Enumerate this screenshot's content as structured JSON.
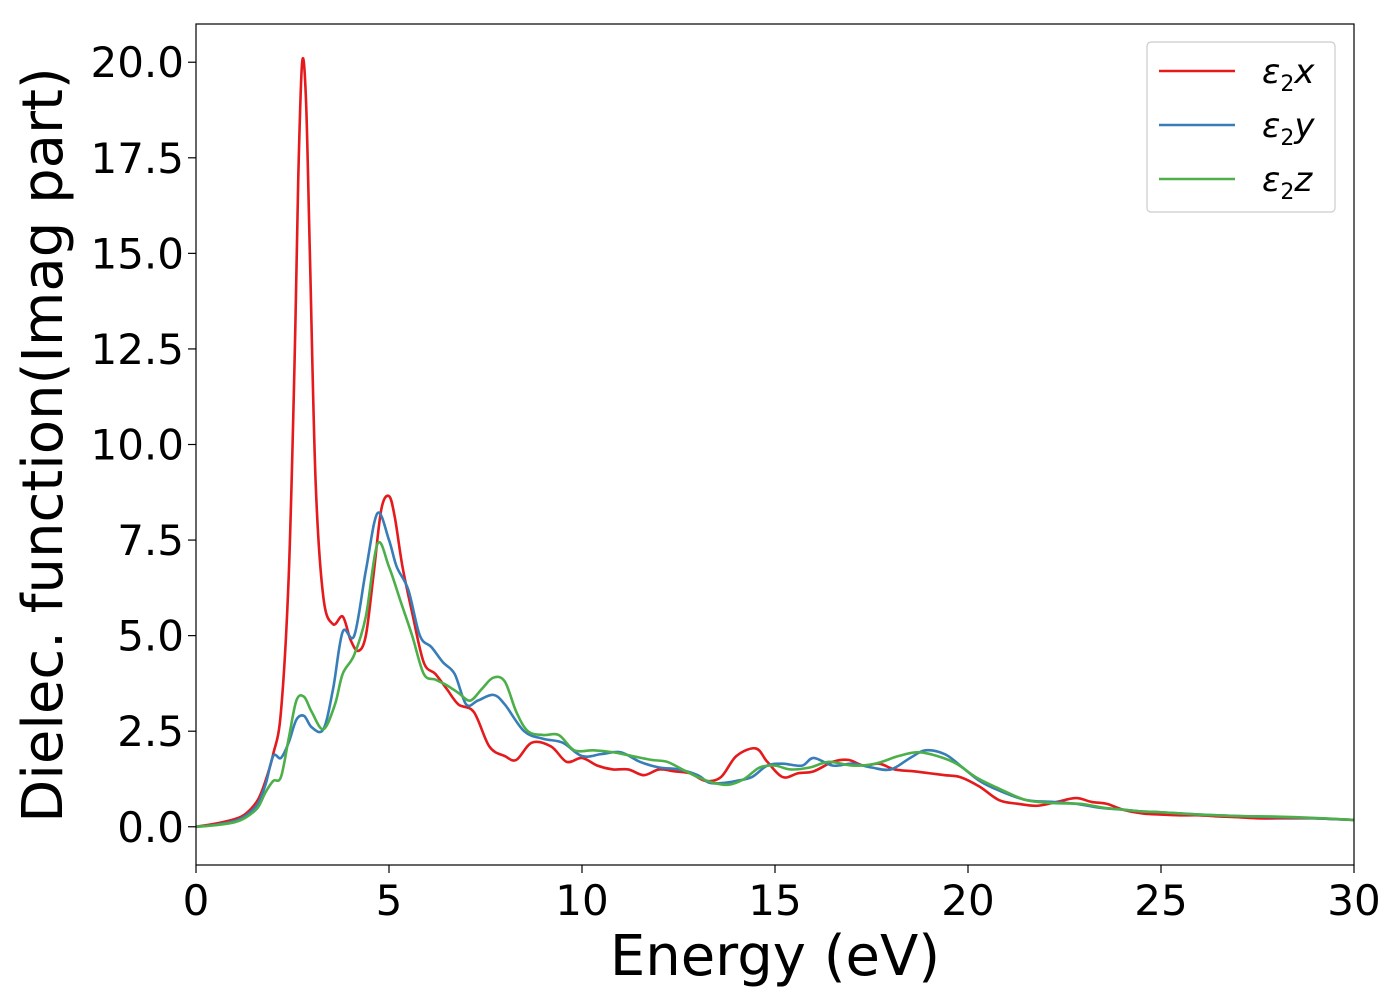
{
  "chart_data": {
    "type": "line",
    "xlabel": "Energy (eV)",
    "ylabel": "Dielec. function(Imag part)",
    "xlim": [
      0,
      30
    ],
    "ylim": [
      -1.0,
      21.0
    ],
    "xticks": [
      0,
      5,
      10,
      15,
      20,
      25,
      30
    ],
    "xtick_labels": [
      "0",
      "5",
      "10",
      "15",
      "20",
      "25",
      "30"
    ],
    "yticks": [
      0,
      2.5,
      5,
      7.5,
      10,
      12.5,
      15,
      17.5,
      20
    ],
    "ytick_labels": [
      "0.0",
      "2.5",
      "5.0",
      "7.5",
      "10.0",
      "12.5",
      "15.0",
      "17.5",
      "20.0"
    ],
    "grid": false,
    "legend_position": "top-right",
    "series": [
      {
        "name": "ε2x",
        "legend_base": "ε",
        "legend_sub": "2",
        "legend_var": "x",
        "color": "#e41a1c",
        "x": [
          0,
          0.5,
          1.0,
          1.3,
          1.6,
          1.8,
          2.0,
          2.2,
          2.4,
          2.55,
          2.65,
          2.75,
          2.85,
          2.95,
          3.1,
          3.3,
          3.55,
          3.8,
          4.0,
          4.2,
          4.4,
          4.6,
          4.8,
          5.0,
          5.15,
          5.35,
          5.6,
          5.9,
          6.2,
          6.5,
          6.8,
          7.2,
          7.6,
          8.0,
          8.3,
          8.7,
          9.2,
          9.6,
          10.0,
          10.4,
          10.8,
          11.2,
          11.6,
          12.0,
          12.4,
          12.8,
          13.2,
          13.6,
          14.0,
          14.5,
          14.8,
          15.2,
          15.6,
          16.0,
          16.5,
          16.9,
          17.3,
          17.7,
          18.1,
          18.6,
          19.0,
          19.4,
          19.8,
          20.3,
          20.8,
          21.3,
          21.8,
          22.3,
          22.8,
          23.2,
          23.6,
          24.0,
          24.5,
          25.0,
          25.5,
          26.0,
          26.5,
          27.0,
          27.5,
          28.0,
          28.5,
          29.0,
          29.5,
          30.0
        ],
        "y": [
          0.0,
          0.08,
          0.2,
          0.35,
          0.7,
          1.2,
          1.9,
          3.0,
          6.5,
          12.0,
          17.0,
          20.0,
          19.0,
          15.0,
          9.0,
          6.0,
          5.3,
          5.5,
          4.9,
          4.6,
          5.0,
          6.6,
          8.3,
          8.65,
          8.1,
          6.8,
          5.6,
          4.3,
          4.0,
          3.6,
          3.2,
          3.0,
          2.1,
          1.85,
          1.75,
          2.2,
          2.1,
          1.7,
          1.8,
          1.6,
          1.5,
          1.5,
          1.35,
          1.5,
          1.45,
          1.4,
          1.2,
          1.3,
          1.85,
          2.05,
          1.7,
          1.3,
          1.4,
          1.45,
          1.7,
          1.75,
          1.6,
          1.65,
          1.5,
          1.45,
          1.4,
          1.35,
          1.3,
          1.05,
          0.7,
          0.6,
          0.55,
          0.65,
          0.75,
          0.65,
          0.6,
          0.45,
          0.35,
          0.32,
          0.3,
          0.3,
          0.27,
          0.25,
          0.22,
          0.22,
          0.22,
          0.22,
          0.2,
          0.18
        ]
      },
      {
        "name": "ε2y",
        "legend_base": "ε",
        "legend_sub": "2",
        "legend_var": "y",
        "color": "#377eb8",
        "x": [
          0,
          0.5,
          1.0,
          1.3,
          1.6,
          1.8,
          2.0,
          2.2,
          2.4,
          2.6,
          2.8,
          3.0,
          3.3,
          3.55,
          3.8,
          4.1,
          4.4,
          4.7,
          5.0,
          5.2,
          5.5,
          5.8,
          6.1,
          6.4,
          6.7,
          7.0,
          7.3,
          7.7,
          8.0,
          8.5,
          9.0,
          9.5,
          10.0,
          10.5,
          11.0,
          11.5,
          12.0,
          12.5,
          13.0,
          13.3,
          13.7,
          14.0,
          14.4,
          14.8,
          15.2,
          15.7,
          16.0,
          16.5,
          17.0,
          17.5,
          18.0,
          18.5,
          18.9,
          19.4,
          19.8,
          20.3,
          20.8,
          21.5,
          22.2,
          22.8,
          23.4,
          24.0,
          24.5,
          25.0,
          26.0,
          27.0,
          28.0,
          29.0,
          30.0
        ],
        "y": [
          0.0,
          0.05,
          0.15,
          0.3,
          0.6,
          1.1,
          1.85,
          1.8,
          2.2,
          2.8,
          2.9,
          2.6,
          2.55,
          3.6,
          5.1,
          5.0,
          6.7,
          8.2,
          7.5,
          6.8,
          6.2,
          5.0,
          4.7,
          4.3,
          4.0,
          3.2,
          3.3,
          3.45,
          3.2,
          2.5,
          2.3,
          2.2,
          1.85,
          1.9,
          1.95,
          1.7,
          1.55,
          1.5,
          1.35,
          1.15,
          1.15,
          1.2,
          1.3,
          1.6,
          1.65,
          1.6,
          1.8,
          1.6,
          1.65,
          1.55,
          1.5,
          1.8,
          2.0,
          1.9,
          1.6,
          1.2,
          0.95,
          0.7,
          0.65,
          0.6,
          0.5,
          0.45,
          0.4,
          0.38,
          0.32,
          0.28,
          0.25,
          0.22,
          0.18
        ]
      },
      {
        "name": "ε2z",
        "legend_base": "ε",
        "legend_sub": "2",
        "legend_var": "z",
        "color": "#4daf4a",
        "x": [
          0,
          0.5,
          1.0,
          1.3,
          1.6,
          1.8,
          2.0,
          2.2,
          2.4,
          2.6,
          2.8,
          3.0,
          3.3,
          3.6,
          3.8,
          4.1,
          4.4,
          4.7,
          5.0,
          5.3,
          5.6,
          5.9,
          6.2,
          6.5,
          6.8,
          7.1,
          7.4,
          7.7,
          8.0,
          8.3,
          8.6,
          9.0,
          9.4,
          9.8,
          10.3,
          10.8,
          11.3,
          11.8,
          12.2,
          12.6,
          13.0,
          13.4,
          13.8,
          14.2,
          14.6,
          15.0,
          15.4,
          15.9,
          16.4,
          17.0,
          17.6,
          18.2,
          18.7,
          19.2,
          19.7,
          20.2,
          20.8,
          21.5,
          22.2,
          22.9,
          23.5,
          24.0,
          24.5,
          25.0,
          26.0,
          27.0,
          27.8,
          28.5,
          29.2,
          30.0
        ],
        "y": [
          0.0,
          0.04,
          0.12,
          0.25,
          0.5,
          0.9,
          1.2,
          1.3,
          2.3,
          3.3,
          3.4,
          3.0,
          2.55,
          3.2,
          4.0,
          4.5,
          5.5,
          7.4,
          6.8,
          5.9,
          5.0,
          4.0,
          3.85,
          3.7,
          3.5,
          3.3,
          3.6,
          3.9,
          3.8,
          3.0,
          2.5,
          2.4,
          2.4,
          2.0,
          2.0,
          1.95,
          1.85,
          1.75,
          1.7,
          1.5,
          1.3,
          1.15,
          1.1,
          1.25,
          1.55,
          1.6,
          1.5,
          1.55,
          1.7,
          1.6,
          1.65,
          1.85,
          1.95,
          1.85,
          1.65,
          1.3,
          1.0,
          0.7,
          0.62,
          0.6,
          0.5,
          0.45,
          0.4,
          0.38,
          0.32,
          0.28,
          0.27,
          0.25,
          0.22,
          0.18
        ]
      }
    ]
  }
}
